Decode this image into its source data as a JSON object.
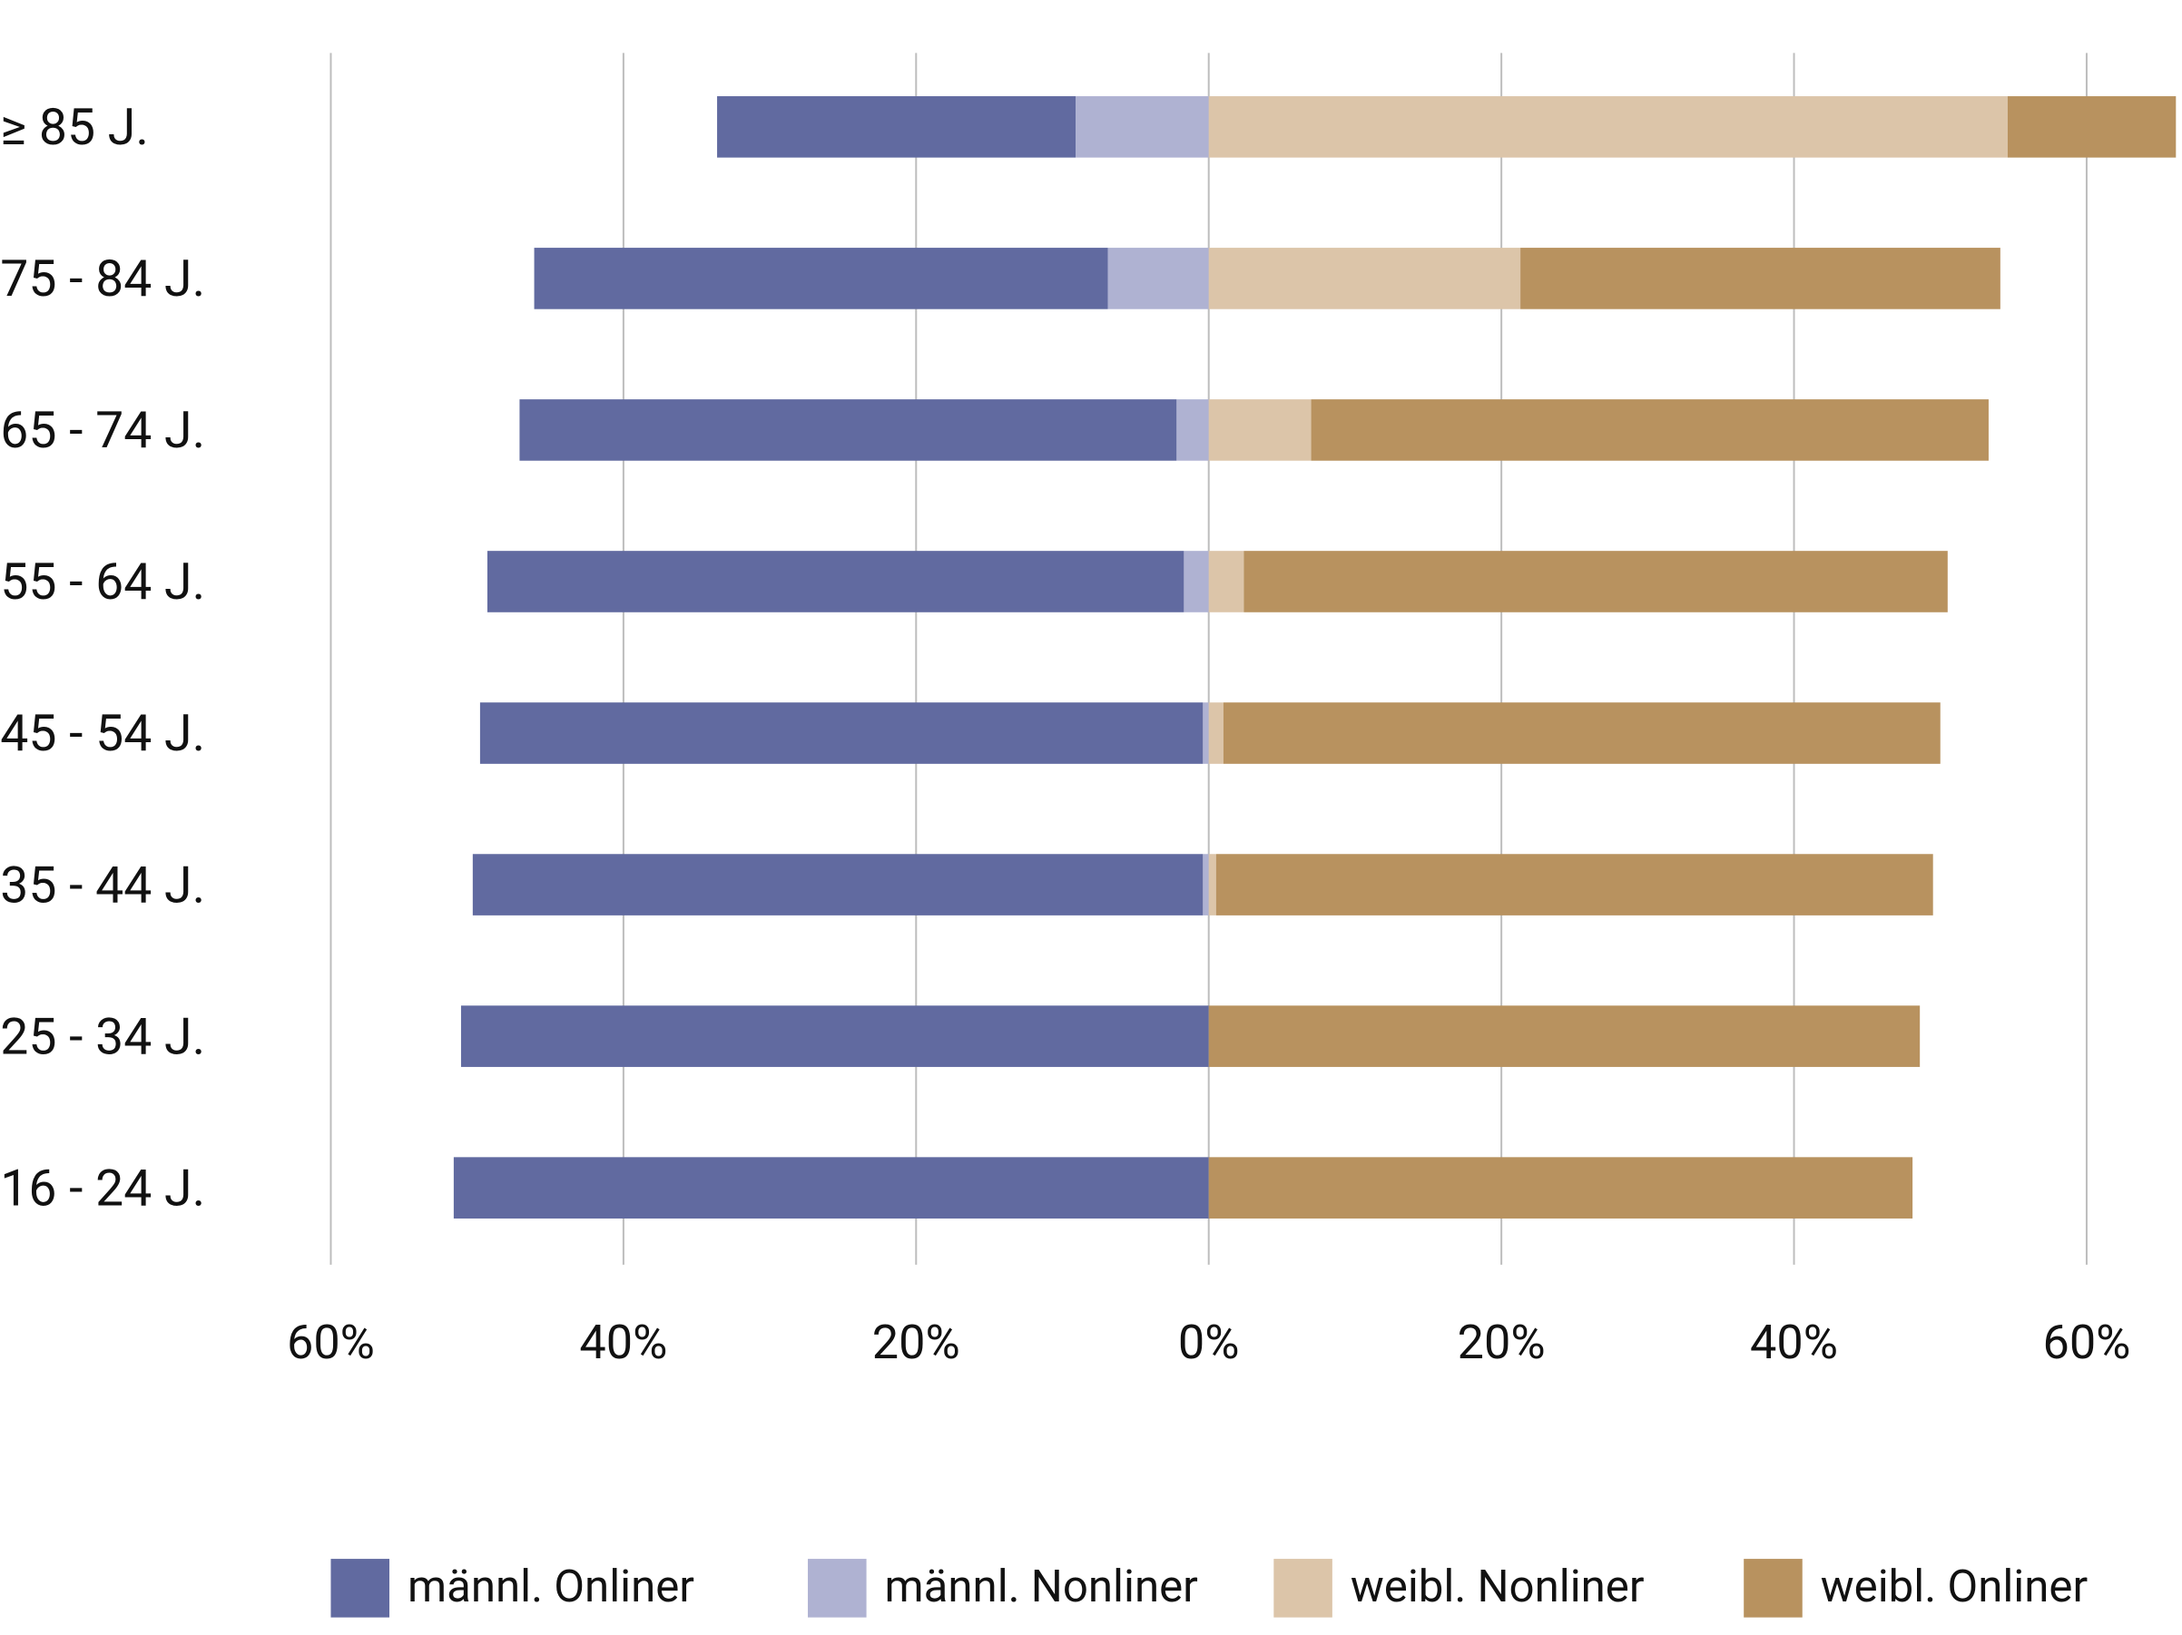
{
  "chart_data": {
    "type": "diverging-bar",
    "categories": [
      "≥ 85 J.",
      "75 - 84 J.",
      "65 - 74 J.",
      "55 - 64 J.",
      "45 - 54 J.",
      "35 - 44 J.",
      "25 - 34 J.",
      "16 - 24 J."
    ],
    "series": [
      {
        "name": "männl. Onliner",
        "color": "#616aa0",
        "values": [
          -24.5,
          -39.2,
          -44.9,
          -47.6,
          -49.4,
          -49.9,
          -51.1,
          -51.6
        ]
      },
      {
        "name": "männl. Nonliner",
        "color": "#afb2d2",
        "values": [
          -9.1,
          -6.9,
          -2.2,
          -1.7,
          -0.4,
          -0.4,
          0,
          0
        ]
      },
      {
        "name": "weibl. Nonliner",
        "color": "#dcc5a9",
        "values": [
          54.6,
          21.3,
          7.0,
          2.4,
          1.0,
          0.5,
          0,
          0
        ]
      },
      {
        "name": "weibl. Onliner",
        "color": "#b8925f",
        "values": [
          11.5,
          32.8,
          46.3,
          48.1,
          49.0,
          49.0,
          48.6,
          48.1
        ]
      }
    ],
    "xlim": [
      -60,
      66.5
    ],
    "xticks": [
      {
        "value": -60,
        "label": "60%"
      },
      {
        "value": -40,
        "label": "40%"
      },
      {
        "value": -20,
        "label": "20%"
      },
      {
        "value": 0,
        "label": "0%"
      },
      {
        "value": 20,
        "label": "20%"
      },
      {
        "value": 40,
        "label": "40%"
      },
      {
        "value": 60,
        "label": "60%"
      }
    ],
    "grid": true,
    "legend": "bottom"
  }
}
